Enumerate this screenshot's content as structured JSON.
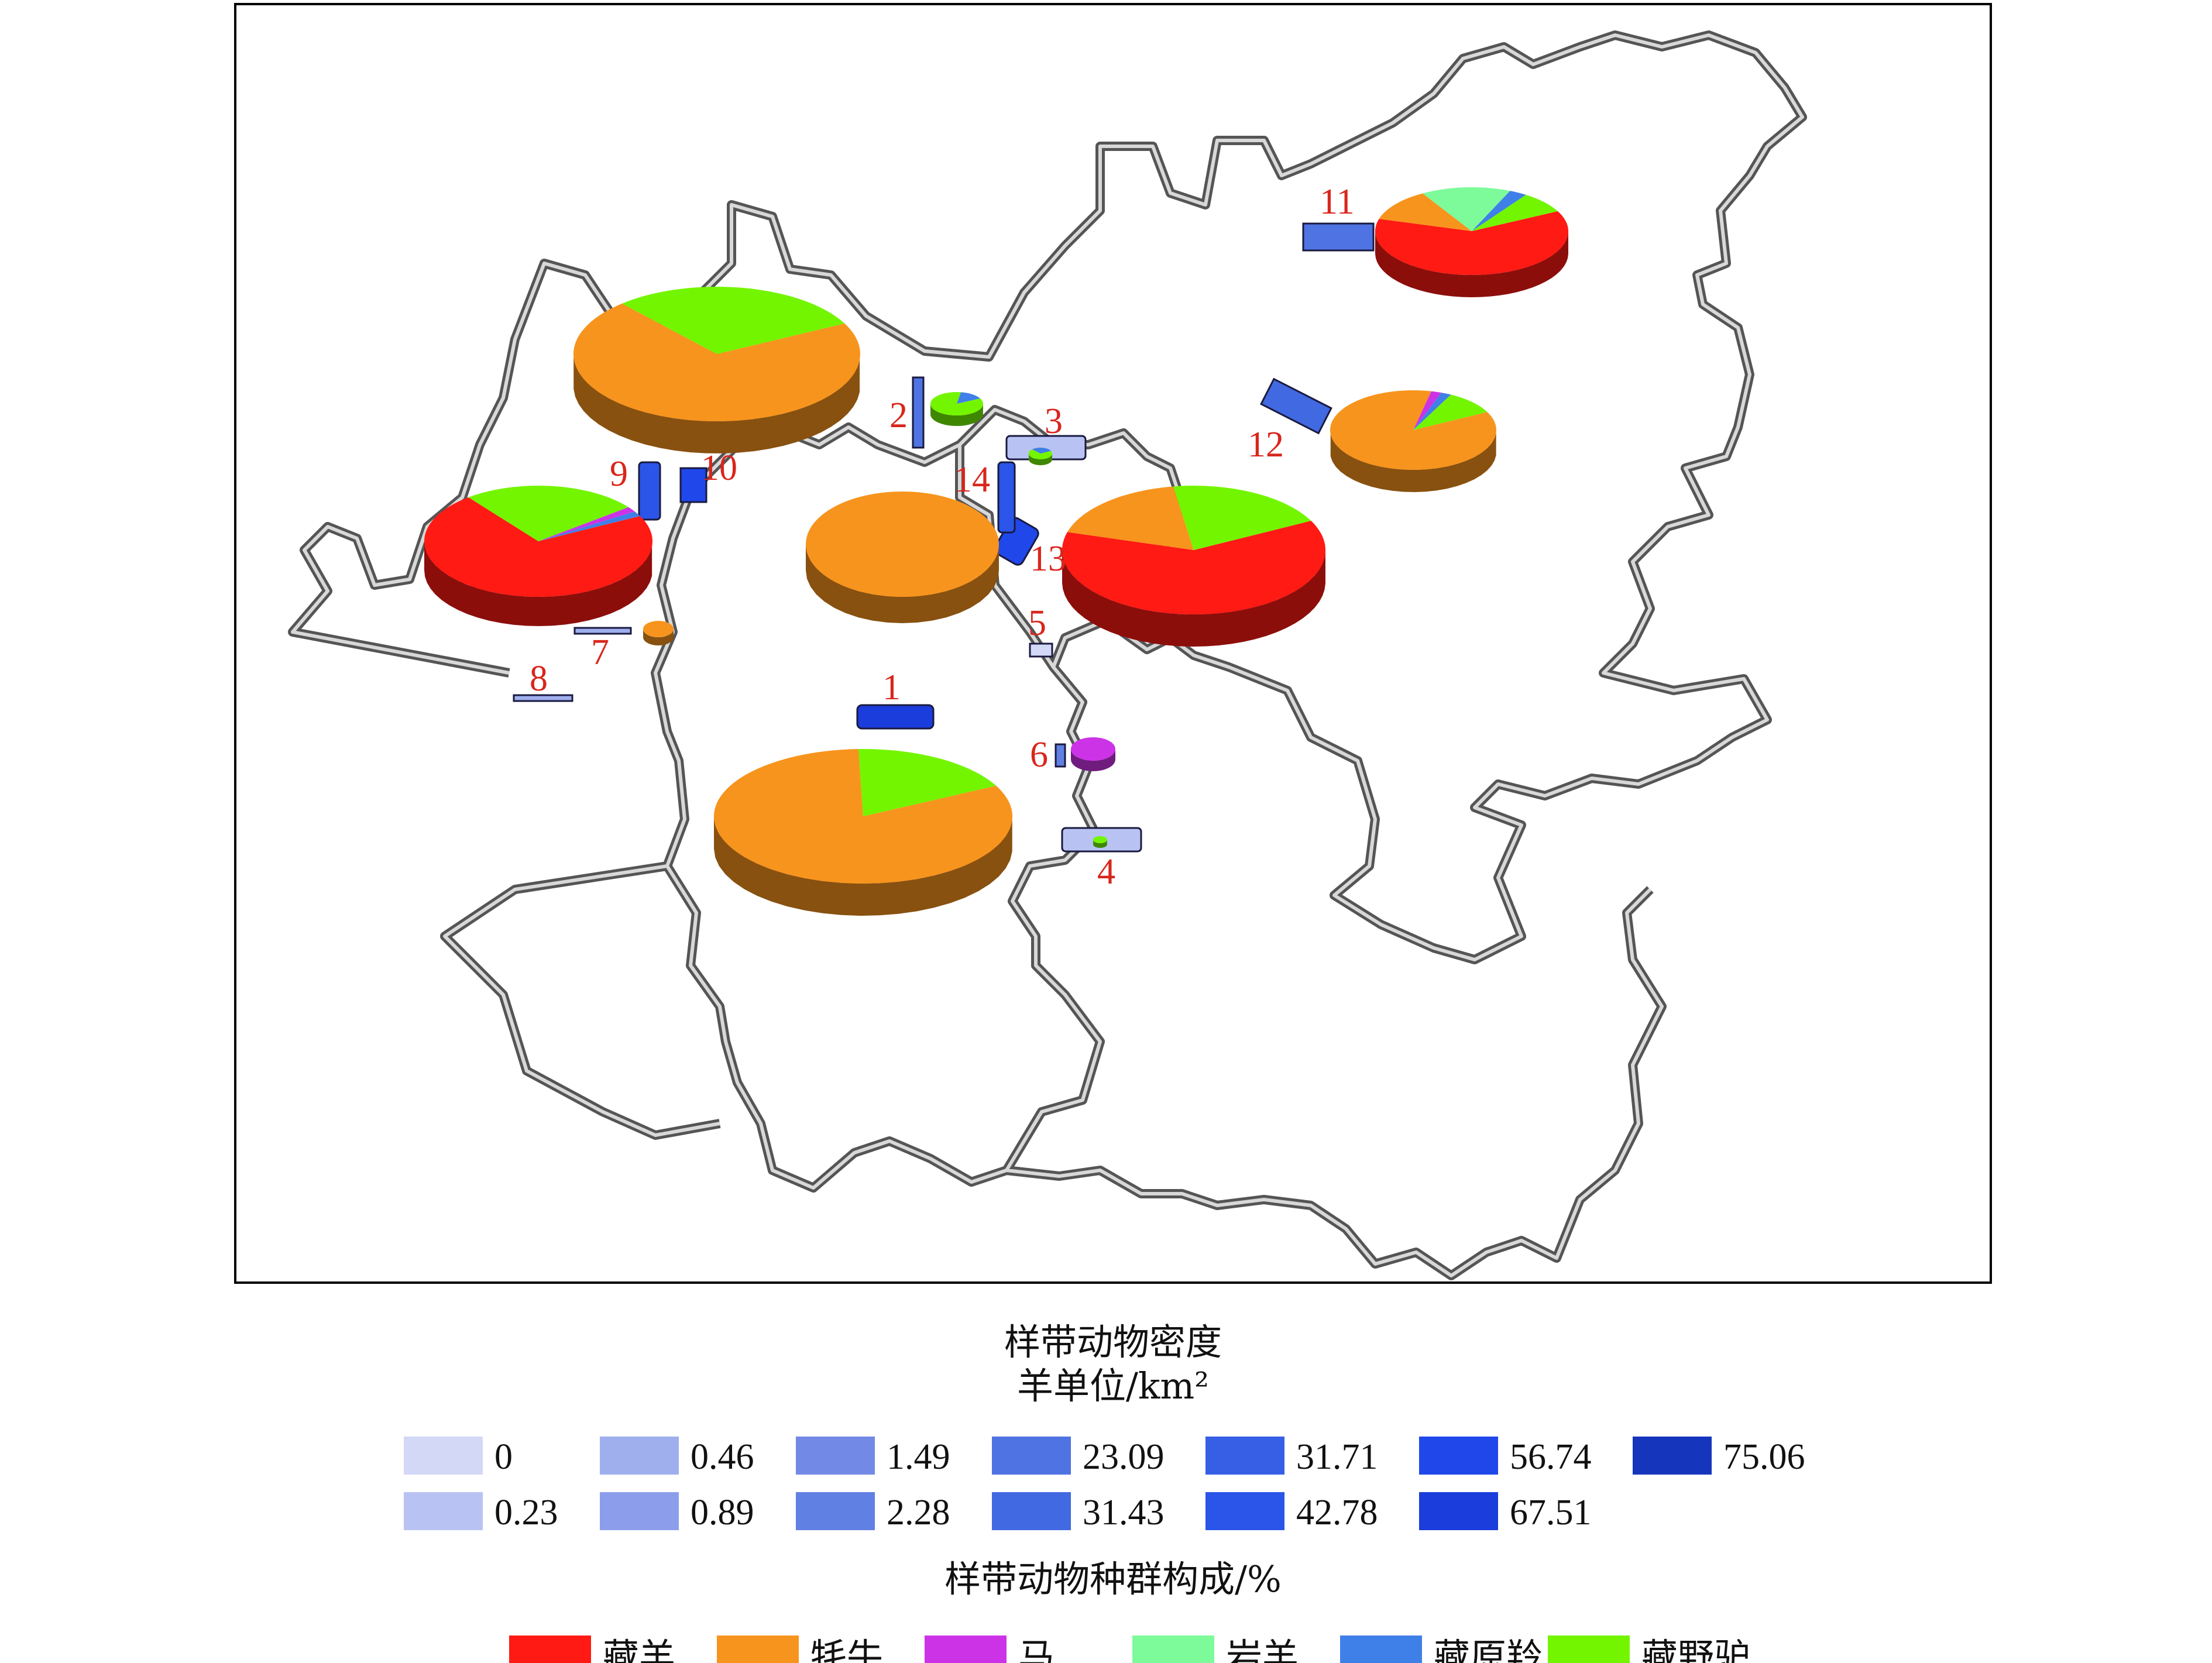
{
  "density_legend": {
    "title": "样带动物密度",
    "unit": "羊单位/km²",
    "items": [
      {
        "label": "0",
        "color": "#d3d8f7"
      },
      {
        "label": "0.23",
        "color": "#b9c3f3"
      },
      {
        "label": "0.46",
        "color": "#9fafee"
      },
      {
        "label": "0.89",
        "color": "#8c9eeb"
      },
      {
        "label": "1.49",
        "color": "#7389e6"
      },
      {
        "label": "2.28",
        "color": "#6180e3"
      },
      {
        "label": "23.09",
        "color": "#4f73e2"
      },
      {
        "label": "31.43",
        "color": "#4169e1"
      },
      {
        "label": "31.71",
        "color": "#365fe6"
      },
      {
        "label": "42.78",
        "color": "#2a55e8"
      },
      {
        "label": "56.74",
        "color": "#1f47ea"
      },
      {
        "label": "67.51",
        "color": "#1a3ddb"
      },
      {
        "label": "75.06",
        "color": "#1635bd"
      }
    ]
  },
  "composition_legend": {
    "title": "样带动物种群构成/%",
    "items": [
      {
        "label": "藏羊",
        "color": "#ff1a14"
      },
      {
        "label": "牦牛",
        "color": "#f7941d"
      },
      {
        "label": "马",
        "color": "#cc33e6"
      },
      {
        "label": "岩羊",
        "color": "#7dfb9a"
      },
      {
        "label": "藏原羚",
        "color": "#3f7fe8"
      },
      {
        "label": "藏野驴",
        "color": "#73f500"
      }
    ]
  },
  "transects": [
    {
      "label": "1",
      "density": "67.51",
      "composition": {
        "牦牛": 82,
        "藏野驴": 18
      }
    },
    {
      "label": "2",
      "density": "23.09",
      "composition": {
        "藏野驴": 85,
        "藏原羚": 15
      }
    },
    {
      "label": "3",
      "density": "0.23",
      "composition": {
        "藏野驴": 70,
        "藏原羚": 30
      }
    },
    {
      "label": "4",
      "density": "0.23",
      "composition": {
        "藏野驴": 100
      }
    },
    {
      "label": "5",
      "density": "0",
      "composition": {}
    },
    {
      "label": "6",
      "density": "2.28",
      "composition": {
        "马": 100
      }
    },
    {
      "label": "7",
      "density": "0.46",
      "composition": {
        "牦牛": 100
      }
    },
    {
      "label": "8",
      "density": "0.46",
      "composition": {}
    },
    {
      "label": "9",
      "density": "42.78",
      "composition": {
        "藏羊": 72,
        "藏野驴": 25,
        "马": 1.5,
        "藏原羚": 1.5
      }
    },
    {
      "label": "10",
      "density": "56.74",
      "composition": {
        "牦牛": 71,
        "藏野驴": 29
      }
    },
    {
      "label": "11",
      "density": "31.71",
      "composition": {
        "藏羊": 62,
        "牦牛": 12,
        "岩羊": 15,
        "藏原羚": 3,
        "藏野驴": 8
      }
    },
    {
      "label": "12",
      "density": "31.43",
      "composition": {
        "牦牛": 86,
        "马": 2,
        "藏原羚": 2,
        "藏野驴": 10
      }
    },
    {
      "label": "13",
      "density": "56.74",
      "composition": {
        "藏羊": 62,
        "牦牛": 18,
        "藏野驴": 20
      }
    },
    {
      "label": "14",
      "density": "42.78",
      "composition": {
        "牦牛": 100
      }
    }
  ]
}
